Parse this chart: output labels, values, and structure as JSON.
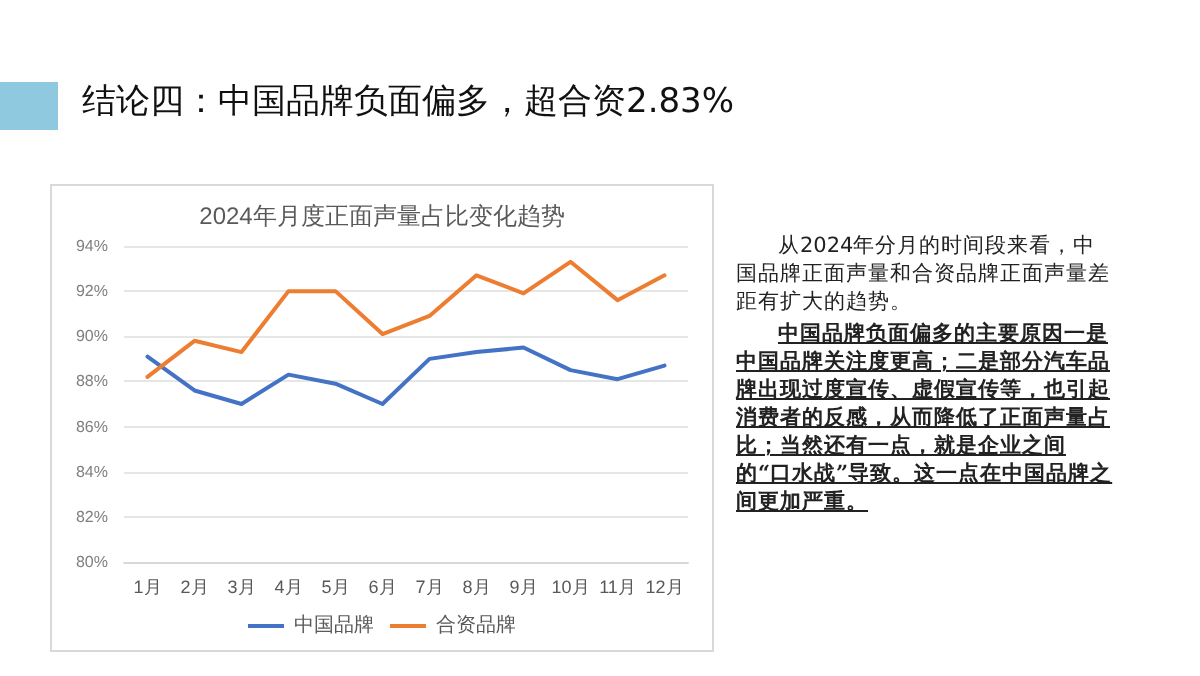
{
  "chart_data": {
    "type": "line",
    "title": "结论四：中国品牌负面偏多，超合资2.83%",
    "subtitle": "2024年月度正面声量占比变化趋势",
    "categories": [
      "1月",
      "2月",
      "3月",
      "4月",
      "5月",
      "6月",
      "7月",
      "8月",
      "9月",
      "10月",
      "11月",
      "12月"
    ],
    "series": [
      {
        "name": "中国品牌",
        "color": "#4472c4",
        "values": [
          89.1,
          87.6,
          87.0,
          88.3,
          87.9,
          87.0,
          89.0,
          89.3,
          89.5,
          88.5,
          88.1,
          88.7
        ]
      },
      {
        "name": "合资品牌",
        "color": "#ed7d31",
        "values": [
          88.2,
          89.8,
          89.3,
          92.0,
          92.0,
          90.1,
          90.9,
          92.7,
          91.9,
          93.3,
          91.6,
          92.7
        ]
      }
    ],
    "ylim": [
      80,
      94
    ],
    "yticks": [
      {
        "value": 80,
        "label": "80%"
      },
      {
        "value": 82,
        "label": "82%"
      },
      {
        "value": 84,
        "label": "84%"
      },
      {
        "value": 86,
        "label": "86%"
      },
      {
        "value": 88,
        "label": "88%"
      },
      {
        "value": 90,
        "label": "90%"
      },
      {
        "value": 92,
        "label": "92%"
      },
      {
        "value": 94,
        "label": "94%"
      }
    ],
    "grid": "y",
    "legend": "bottom",
    "marker": "none",
    "line_style": "solid",
    "annotations": [
      "从2024年分月的时间段来看，中国品牌正面声量和合资品牌正面声量差距有扩大的趋势。",
      "中国品牌负面偏多的主要原因一是中国品牌关注度更高；二是部分汽车品牌出现过度宣传、虚假宣传等，也引起消费者的反感，从而降低了正面声量占比；当然还有一点，就是企业之间的“口水战”导致。这一点在中国品牌之间更加严重。"
    ]
  }
}
